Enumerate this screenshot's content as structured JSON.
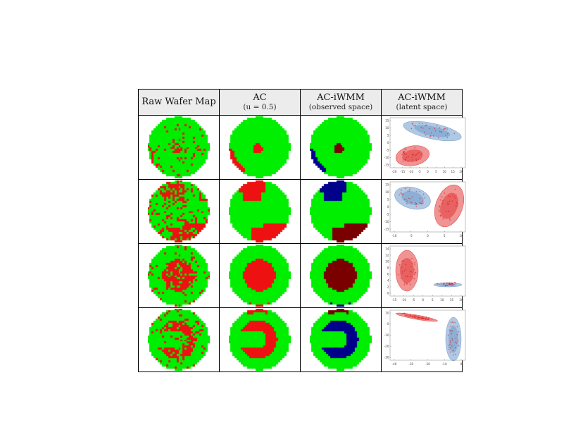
{
  "headers": [
    {
      "title": "Raw Wafer Map",
      "subtitle": ""
    },
    {
      "title": "AC",
      "subtitle": "(u = 0.5)"
    },
    {
      "title": "AC-iWMM",
      "subtitle": "(observed space)"
    },
    {
      "title": "AC-iWMM",
      "subtitle": "(latent space)"
    }
  ],
  "colors": {
    "good": "#00ee00",
    "defect": "#ee1111",
    "dark_red": "#7a0000",
    "dark_blue": "#00008b",
    "ellipse_blue": "#6f9bcc",
    "ellipse_red": "#e23b3b"
  },
  "rows": [
    {
      "pattern": "center",
      "latent": {
        "x_ticks": [
          "-20",
          "-15",
          "-10",
          "-5",
          "0",
          "5",
          "10",
          "15",
          "20"
        ],
        "y_ticks": [
          "15",
          "10",
          "5",
          "0",
          "-5",
          "-10",
          "-15"
        ]
      }
    },
    {
      "pattern": "edge-local",
      "latent": {
        "x_ticks": [
          "-10",
          "-5",
          "0",
          "5",
          "10"
        ],
        "y_ticks": [
          "15",
          "10",
          "5",
          "0",
          "-5",
          "-10",
          "-15"
        ]
      }
    },
    {
      "pattern": "center-large",
      "latent": {
        "x_ticks": [
          "-15",
          "-10",
          "-5",
          "0",
          "5",
          "10",
          "15",
          "20"
        ],
        "y_ticks": [
          "14",
          "12",
          "10",
          "8",
          "6",
          "4",
          "2",
          "0"
        ]
      }
    },
    {
      "pattern": "ring",
      "latent": {
        "x_ticks": [
          "-40",
          "-30",
          "-20",
          "-10",
          "0"
        ],
        "y_ticks": [
          "10",
          "0",
          "-10",
          "-20",
          "-30"
        ]
      }
    }
  ]
}
